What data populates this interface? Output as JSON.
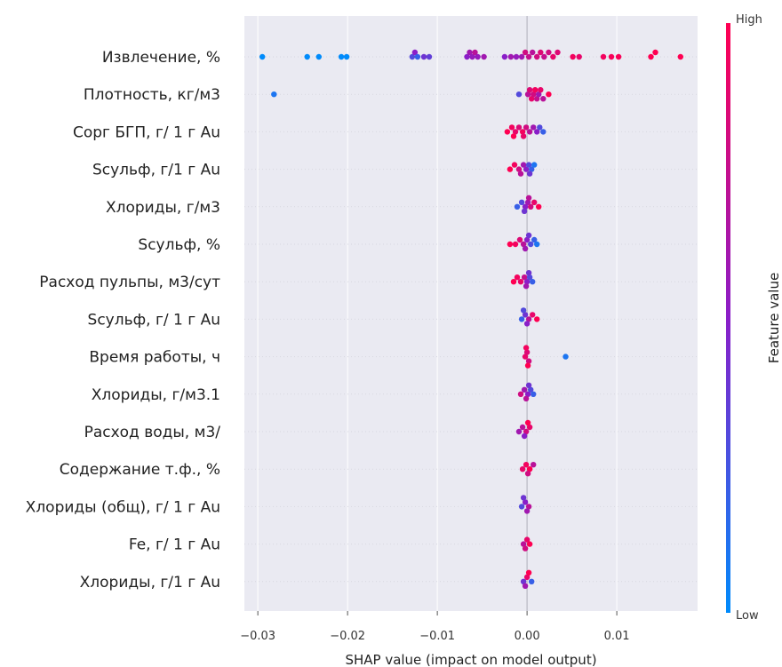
{
  "chart_data": {
    "type": "scatter",
    "title": "",
    "xlabel": "SHAP value (impact on model output)",
    "ylabel": "",
    "xlim": [
      -0.0315,
      0.019
    ],
    "xticks": [
      -0.03,
      -0.02,
      -0.01,
      0.0,
      0.01
    ],
    "xtick_labels": [
      "−0.03",
      "−0.02",
      "−0.01",
      "0.00",
      "0.01"
    ],
    "grid": true,
    "colorbar": {
      "title": "Feature value",
      "high_label": "High",
      "low_label": "Low",
      "high_color": "#ff0052",
      "mid_color": "#8a1ec8",
      "low_color": "#008bfb"
    },
    "features": [
      {
        "name": "Извлечение, %",
        "points": [
          [
            -0.0295,
            0
          ],
          [
            -0.0245,
            0
          ],
          [
            -0.0232,
            0
          ],
          [
            -0.0207,
            0
          ],
          [
            -0.0201,
            0
          ],
          [
            -0.0128,
            0.3
          ],
          [
            -0.0125,
            0.5
          ],
          [
            -0.0122,
            0.2
          ],
          [
            -0.0115,
            0.4
          ],
          [
            -0.0109,
            0.35
          ],
          [
            -0.0067,
            0.5
          ],
          [
            -0.0064,
            0.6
          ],
          [
            -0.0061,
            0.55
          ],
          [
            -0.0058,
            0.7
          ],
          [
            -0.0055,
            0.55
          ],
          [
            -0.0048,
            0.6
          ],
          [
            -0.0025,
            0.5
          ],
          [
            -0.0018,
            0.6
          ],
          [
            -0.0012,
            0.55
          ],
          [
            -0.0006,
            0.6
          ],
          [
            -0.0002,
            0.8
          ],
          [
            0.0002,
            0.75
          ],
          [
            0.0006,
            0.7
          ],
          [
            0.0011,
            0.8
          ],
          [
            0.0015,
            0.85
          ],
          [
            0.0019,
            0.75
          ],
          [
            0.0024,
            0.8
          ],
          [
            0.0029,
            0.9
          ],
          [
            0.0034,
            0.85
          ],
          [
            0.0051,
            0.95
          ],
          [
            0.0058,
            0.9
          ],
          [
            0.0085,
            0.95
          ],
          [
            0.0094,
            0.97
          ],
          [
            0.0102,
            0.98
          ],
          [
            0.0138,
            1
          ],
          [
            0.0143,
            1
          ],
          [
            0.0171,
            1
          ]
        ]
      },
      {
        "name": "Плотность, кг/м3",
        "points": [
          [
            -0.0282,
            0.1
          ],
          [
            -0.0009,
            0.3
          ],
          [
            0.0001,
            0.7
          ],
          [
            0.0003,
            0.85
          ],
          [
            0.0005,
            0.9
          ],
          [
            0.0007,
            0.8
          ],
          [
            0.0009,
            0.95
          ],
          [
            0.0011,
            0.75
          ],
          [
            0.0013,
            0.6
          ],
          [
            0.0015,
            0.9
          ],
          [
            0.0018,
            0.7
          ],
          [
            0.0024,
            1
          ]
        ]
      },
      {
        "name": "Сорг БГП, г/ 1 г Au",
        "points": [
          [
            -0.0022,
            1
          ],
          [
            -0.0017,
            0.95
          ],
          [
            -0.0013,
            0.9
          ],
          [
            -0.0009,
            0.85
          ],
          [
            -0.0005,
            0.95
          ],
          [
            -0.0001,
            0.8
          ],
          [
            0.0003,
            0.7
          ],
          [
            0.0007,
            0.6
          ],
          [
            0.0011,
            0.5
          ],
          [
            0.0014,
            0.3
          ],
          [
            0.0018,
            0.2
          ],
          [
            -0.0015,
            1
          ],
          [
            -0.0004,
            0.9
          ]
        ]
      },
      {
        "name": "Sсульф, г/1 г Au",
        "points": [
          [
            -0.0019,
            1
          ],
          [
            -0.0014,
            0.95
          ],
          [
            -0.0009,
            0.8
          ],
          [
            -0.0004,
            0.6
          ],
          [
            -0.0001,
            0.5
          ],
          [
            0.0002,
            0.3
          ],
          [
            0.0005,
            0.2
          ],
          [
            0.0008,
            0.1
          ],
          [
            -0.0007,
            0.7
          ],
          [
            0.0003,
            0.4
          ]
        ]
      },
      {
        "name": "Хлориды, г/м3",
        "points": [
          [
            -0.0011,
            0.2
          ],
          [
            -0.0006,
            0.3
          ],
          [
            -0.0002,
            0.5
          ],
          [
            0.0001,
            0.6
          ],
          [
            0.0004,
            0.8
          ],
          [
            0.0008,
            0.9
          ],
          [
            0.0013,
            1
          ],
          [
            -0.0003,
            0.4
          ],
          [
            0.0002,
            0.7
          ]
        ]
      },
      {
        "name": "Sсульф, %",
        "points": [
          [
            -0.0019,
            1
          ],
          [
            -0.0013,
            0.95
          ],
          [
            -0.0008,
            0.85
          ],
          [
            -0.0004,
            0.7
          ],
          [
            0.0,
            0.5
          ],
          [
            0.0004,
            0.3
          ],
          [
            0.0008,
            0.2
          ],
          [
            0.0011,
            0.1
          ],
          [
            -0.0002,
            0.6
          ],
          [
            0.0002,
            0.4
          ]
        ]
      },
      {
        "name": "Расход пульпы, м3/сут",
        "points": [
          [
            -0.0015,
            1
          ],
          [
            -0.0011,
            0.95
          ],
          [
            -0.0007,
            0.9
          ],
          [
            -0.0003,
            0.75
          ],
          [
            0.0,
            0.5
          ],
          [
            0.0003,
            0.3
          ],
          [
            0.0006,
            0.2
          ],
          [
            -0.0001,
            0.6
          ],
          [
            0.0002,
            0.4
          ]
        ]
      },
      {
        "name": "Sсульф, г/ 1 г Au",
        "points": [
          [
            -0.0006,
            0.2
          ],
          [
            -0.0002,
            0.4
          ],
          [
            0.0002,
            0.7
          ],
          [
            0.0006,
            0.9
          ],
          [
            0.0011,
            1
          ],
          [
            0.0,
            0.5
          ],
          [
            -0.0004,
            0.3
          ]
        ]
      },
      {
        "name": "Время работы, ч",
        "points": [
          [
            -0.0002,
            0.9
          ],
          [
            0.0,
            0.85
          ],
          [
            0.0002,
            0.8
          ],
          [
            -0.0001,
            0.95
          ],
          [
            0.0001,
            1
          ],
          [
            0.0043,
            0.1
          ]
        ]
      },
      {
        "name": "Хлориды, г/м3.1",
        "points": [
          [
            -0.0007,
            0.8
          ],
          [
            -0.0003,
            0.6
          ],
          [
            0.0001,
            0.5
          ],
          [
            0.0004,
            0.3
          ],
          [
            0.0007,
            0.2
          ],
          [
            -0.0001,
            0.7
          ],
          [
            0.0002,
            0.4
          ]
        ]
      },
      {
        "name": "Расход воды, м3/",
        "points": [
          [
            -0.0009,
            0.6
          ],
          [
            -0.0005,
            0.7
          ],
          [
            -0.0001,
            0.8
          ],
          [
            0.0003,
            0.9
          ],
          [
            -0.0003,
            0.5
          ],
          [
            0.0001,
            1
          ]
        ]
      },
      {
        "name": "Содержание т.ф., %",
        "points": [
          [
            -0.0005,
            0.9
          ],
          [
            -0.0001,
            0.95
          ],
          [
            0.0003,
            1
          ],
          [
            0.0007,
            0.7
          ],
          [
            0.0001,
            0.8
          ]
        ]
      },
      {
        "name": "Хлориды (общ), г/ 1 г Au",
        "points": [
          [
            -0.0006,
            0.3
          ],
          [
            -0.0002,
            0.5
          ],
          [
            0.0002,
            0.7
          ],
          [
            0.0,
            0.6
          ],
          [
            -0.0004,
            0.4
          ]
        ]
      },
      {
        "name": "Fe, г/ 1 г Au",
        "points": [
          [
            -0.0004,
            0.7
          ],
          [
            0.0,
            0.9
          ],
          [
            0.0003,
            1
          ],
          [
            -0.0002,
            0.8
          ]
        ]
      },
      {
        "name": "Хлориды, г/1 г Au",
        "points": [
          [
            -0.0004,
            0.4
          ],
          [
            0.0,
            0.9
          ],
          [
            0.0005,
            0.2
          ],
          [
            -0.0002,
            0.6
          ],
          [
            0.0002,
            1
          ]
        ]
      }
    ]
  }
}
